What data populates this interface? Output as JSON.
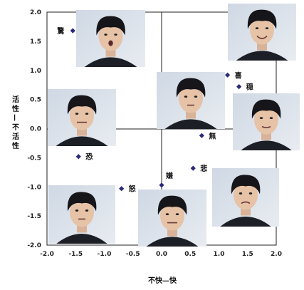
{
  "chart_data": {
    "type": "scatter",
    "title": "",
    "xlabel": "不快—快",
    "ylabel": "活性—不活性",
    "xlim": [
      -2.0,
      2.0
    ],
    "ylim": [
      -2.0,
      2.0
    ],
    "xticks": [
      "-2.0",
      "-1.5",
      "-1.0",
      "-0.5",
      "0.0",
      "0.5",
      "1.0",
      "1.5",
      "2.0"
    ],
    "yticks": [
      "2.0",
      "1.5",
      "1.0",
      "0.5",
      "0.0",
      "-0.5",
      "-1.0",
      "-1.5",
      "-2.0"
    ],
    "grid": false,
    "marker_color": "#2a2a7a",
    "points": [
      {
        "label": "驚",
        "x": -1.55,
        "y": 1.68
      },
      {
        "label": "喜",
        "x": 1.15,
        "y": 0.92
      },
      {
        "label": "穏",
        "x": 1.35,
        "y": 0.72
      },
      {
        "label": "無",
        "x": 0.7,
        "y": -0.12
      },
      {
        "label": "恐",
        "x": -1.45,
        "y": -0.48
      },
      {
        "label": "嫌",
        "x": 0.0,
        "y": -0.97
      },
      {
        "label": "悲",
        "x": 0.55,
        "y": -0.68
      },
      {
        "label": "怒",
        "x": -0.7,
        "y": -1.03
      }
    ],
    "face_photos": [
      "surprise-face-photo",
      "happy-face-photo",
      "neutral-face-photo",
      "fear-face-photo",
      "calm-face-photo",
      "anger-face-photo",
      "disgust-face-photo",
      "sad-face-photo"
    ]
  }
}
